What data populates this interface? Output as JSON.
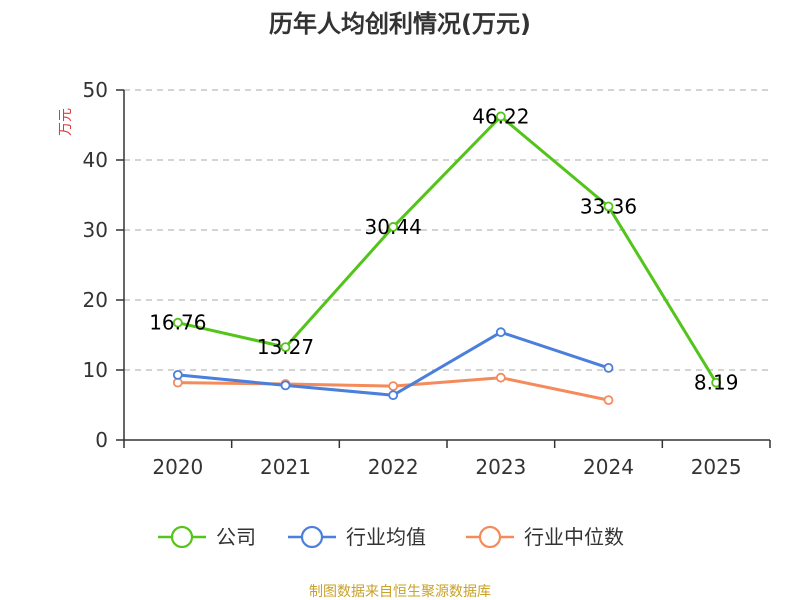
{
  "colors": {
    "company": "#52c41a",
    "industry_avg": "#4a7fdb",
    "industry_median": "#f58a5b",
    "grid": "#bbbbbb",
    "axis": "#333333",
    "unit": "#e0393e",
    "source": "#c9a227"
  },
  "chart_data": {
    "type": "line",
    "title": "历年人均创利情况(万元)",
    "ylabel": "万元",
    "xlabel": "",
    "categories": [
      "2020",
      "2021",
      "2022",
      "2023",
      "2024",
      "2025"
    ],
    "ylim": [
      0,
      50
    ],
    "yticks": [
      0,
      10,
      20,
      30,
      40,
      50
    ],
    "grid": true,
    "legend_position": "bottom",
    "series": [
      {
        "name": "公司",
        "color_key": "company",
        "values": [
          16.76,
          13.27,
          30.44,
          46.22,
          33.36,
          8.19
        ],
        "labels": [
          "16.76",
          "13.27",
          "30.44",
          "46.22",
          "33.36",
          "8.19"
        ]
      },
      {
        "name": "行业均值",
        "color_key": "industry_avg",
        "values": [
          9.3,
          7.8,
          6.4,
          15.4,
          10.3,
          null
        ]
      },
      {
        "name": "行业中位数",
        "color_key": "industry_median",
        "values": [
          8.2,
          8.0,
          7.7,
          8.9,
          5.7,
          null
        ]
      }
    ]
  },
  "footer": {
    "source": "制图数据来自恒生聚源数据库"
  }
}
